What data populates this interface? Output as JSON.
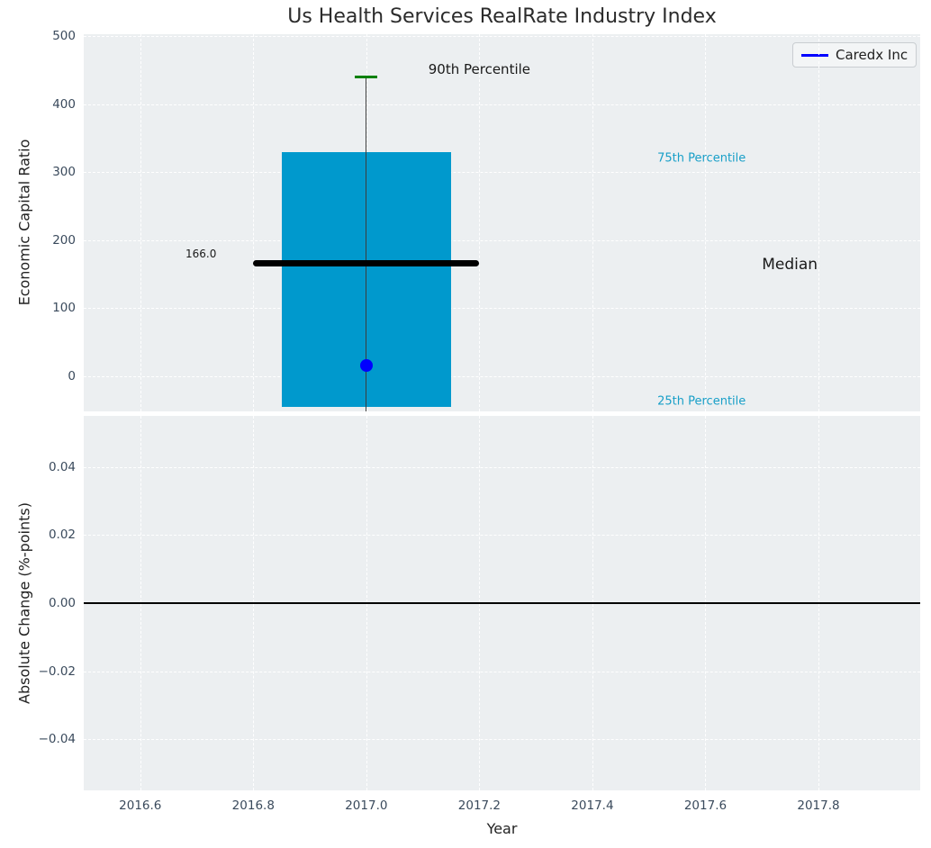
{
  "figure": {
    "title": "Us Health Services RealRate Industry Index",
    "background": "#ffffff",
    "axes_background": "#eceff1",
    "grid_color": "#ffffff",
    "tick_color": "#3a4a5c",
    "text_color": "#222222"
  },
  "chart_data": [
    {
      "type": "bar",
      "title": "Us Health Services RealRate Industry Index",
      "ylabel": "Economic Capital Ratio",
      "xlabel": "",
      "xlim": [
        2016.5,
        2017.98
      ],
      "ylim": [
        -52,
        503
      ],
      "grid": true,
      "show_xtick_labels": false,
      "xticks": [
        {
          "v": 2016.6,
          "label": "2016.6"
        },
        {
          "v": 2016.8,
          "label": "2016.8"
        },
        {
          "v": 2017.0,
          "label": "2017.0"
        },
        {
          "v": 2017.2,
          "label": "2017.2"
        },
        {
          "v": 2017.4,
          "label": "2017.4"
        },
        {
          "v": 2017.6,
          "label": "2017.6"
        },
        {
          "v": 2017.8,
          "label": "2017.8"
        }
      ],
      "yticks": [
        {
          "v": 0,
          "label": "0"
        },
        {
          "v": 100,
          "label": "100"
        },
        {
          "v": 200,
          "label": "200"
        },
        {
          "v": 300,
          "label": "300"
        },
        {
          "v": 400,
          "label": "400"
        },
        {
          "v": 500,
          "label": "500"
        }
      ],
      "box": {
        "x": 2017.0,
        "bar_left": 2016.85,
        "bar_right": 2017.15,
        "p25": -45,
        "p75": 330,
        "median": 166,
        "median_label": "166.0",
        "median_span": [
          2016.8,
          2017.2
        ],
        "p90": 440,
        "bar_color": "#0099cd",
        "median_color": "#000000",
        "whisker_color": "#3c3c3c",
        "cap_color": "#008000"
      },
      "point": {
        "x": 2017.0,
        "y": 16,
        "color": "#0000ff",
        "series": "Caredx Inc"
      },
      "legend": {
        "position": "upper-right",
        "entries": [
          {
            "label": "Caredx Inc",
            "color": "#0000ff"
          }
        ]
      },
      "annotations": [
        {
          "text": "90th Percentile",
          "x": 2017.2,
          "y": 451,
          "color": "#1a1a1a",
          "size": 15,
          "anchor": "middle"
        },
        {
          "text": "75th Percentile",
          "x": 2017.515,
          "y": 320,
          "color": "#189fc8",
          "size": 13,
          "anchor": "start"
        },
        {
          "text": "Median",
          "x": 2017.7,
          "y": 164,
          "color": "#1a1a1a",
          "size": 17,
          "anchor": "start"
        },
        {
          "text": "25th Percentile",
          "x": 2017.515,
          "y": -37,
          "color": "#189fc8",
          "size": 13,
          "anchor": "start"
        },
        {
          "text": "166.0",
          "x": 2016.68,
          "y": 180,
          "color": "#1a1a1a",
          "size": 12,
          "anchor": "start"
        }
      ]
    },
    {
      "type": "line",
      "ylabel": "Absolute Change (%-points)",
      "xlabel": "Year",
      "xlim": [
        2016.5,
        2017.98
      ],
      "ylim": [
        -0.055,
        0.055
      ],
      "grid": true,
      "show_xtick_labels": true,
      "xticks": [
        {
          "v": 2016.6,
          "label": "2016.6"
        },
        {
          "v": 2016.8,
          "label": "2016.8"
        },
        {
          "v": 2017.0,
          "label": "2017.0"
        },
        {
          "v": 2017.2,
          "label": "2017.2"
        },
        {
          "v": 2017.4,
          "label": "2017.4"
        },
        {
          "v": 2017.6,
          "label": "2017.6"
        },
        {
          "v": 2017.8,
          "label": "2017.8"
        }
      ],
      "yticks": [
        {
          "v": 0.04,
          "label": "0.04"
        },
        {
          "v": 0.02,
          "label": "0.02"
        },
        {
          "v": 0.0,
          "label": "0.00"
        },
        {
          "v": -0.02,
          "label": "−0.02"
        },
        {
          "v": -0.04,
          "label": "−0.04"
        }
      ],
      "zero_line": {
        "y": 0,
        "color": "#000000",
        "width": 1.5
      }
    }
  ]
}
